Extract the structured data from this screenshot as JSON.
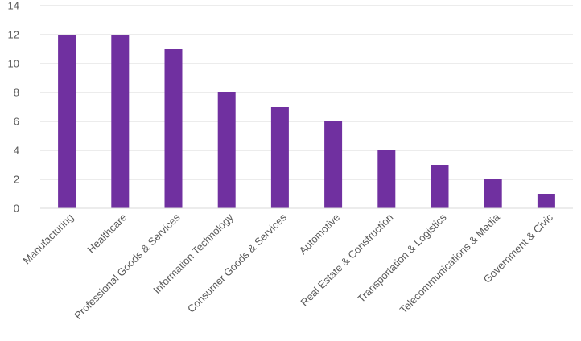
{
  "chart_data": {
    "type": "bar",
    "title": "",
    "xlabel": "",
    "ylabel": "",
    "categories": [
      "Manufacturing",
      "Healthcare",
      "Professional Goods & Services",
      "Information Technology",
      "Consumer Goods & Services",
      "Automotive",
      "Real Estate & Construction",
      "Transportation & Logistics",
      "Telecommunications & Media",
      "Government & Civic"
    ],
    "values": [
      12,
      12,
      11,
      8,
      7,
      6,
      4,
      3,
      2,
      1
    ],
    "ylim": [
      0,
      14
    ],
    "yticks": [
      0,
      2,
      4,
      6,
      8,
      10,
      12,
      14
    ],
    "grid": true,
    "legend": "none",
    "bar_color": "#7030a0",
    "gridline_color": "#d9d9d9",
    "label_color": "#595959"
  }
}
